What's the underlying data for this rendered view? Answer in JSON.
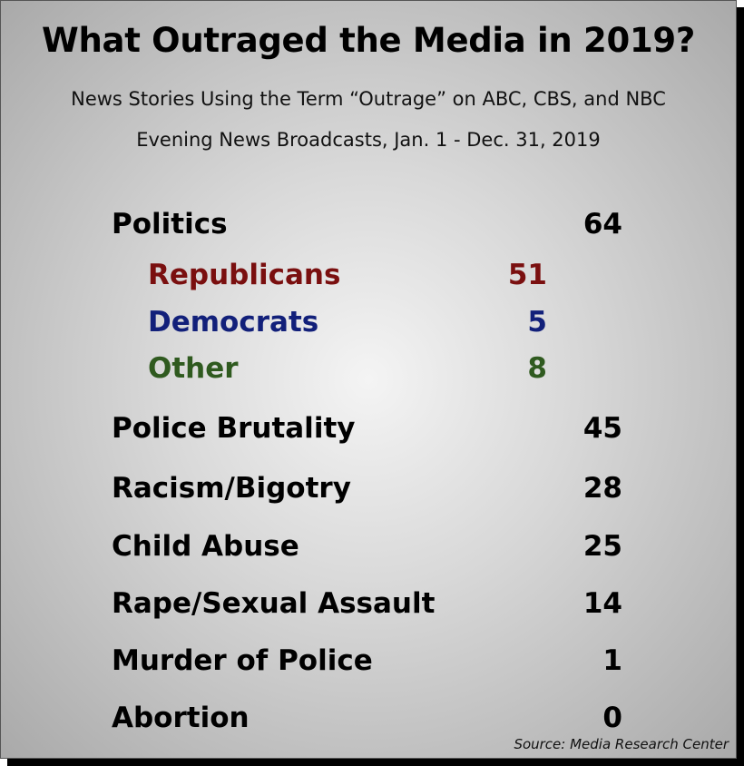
{
  "chart_data": {
    "type": "table",
    "title": "What Outraged the Media in 2019?",
    "subtitle_lines": [
      "News Stories Using the Term “Outrage” on ABC, CBS, and NBC",
      "Evening News Broadcasts, Jan. 1 - Dec. 31, 2019"
    ],
    "rows": [
      {
        "label": "Politics",
        "value": 64
      },
      {
        "label": "Police Brutality",
        "value": 45
      },
      {
        "label": "Racism/Bigotry",
        "value": 28
      },
      {
        "label": "Child Abuse",
        "value": 25
      },
      {
        "label": "Rape/Sexual Assault",
        "value": 14
      },
      {
        "label": "Murder of Police",
        "value": 1
      },
      {
        "label": "Abortion",
        "value": 0
      }
    ],
    "politics_breakdown": [
      {
        "label": "Republicans",
        "value": 51,
        "color": "#7a0f0f"
      },
      {
        "label": "Democrats",
        "value": 5,
        "color": "#12207a"
      },
      {
        "label": "Other",
        "value": 8,
        "color": "#2f5a1f"
      }
    ],
    "source": "Source: Media Research Center"
  }
}
